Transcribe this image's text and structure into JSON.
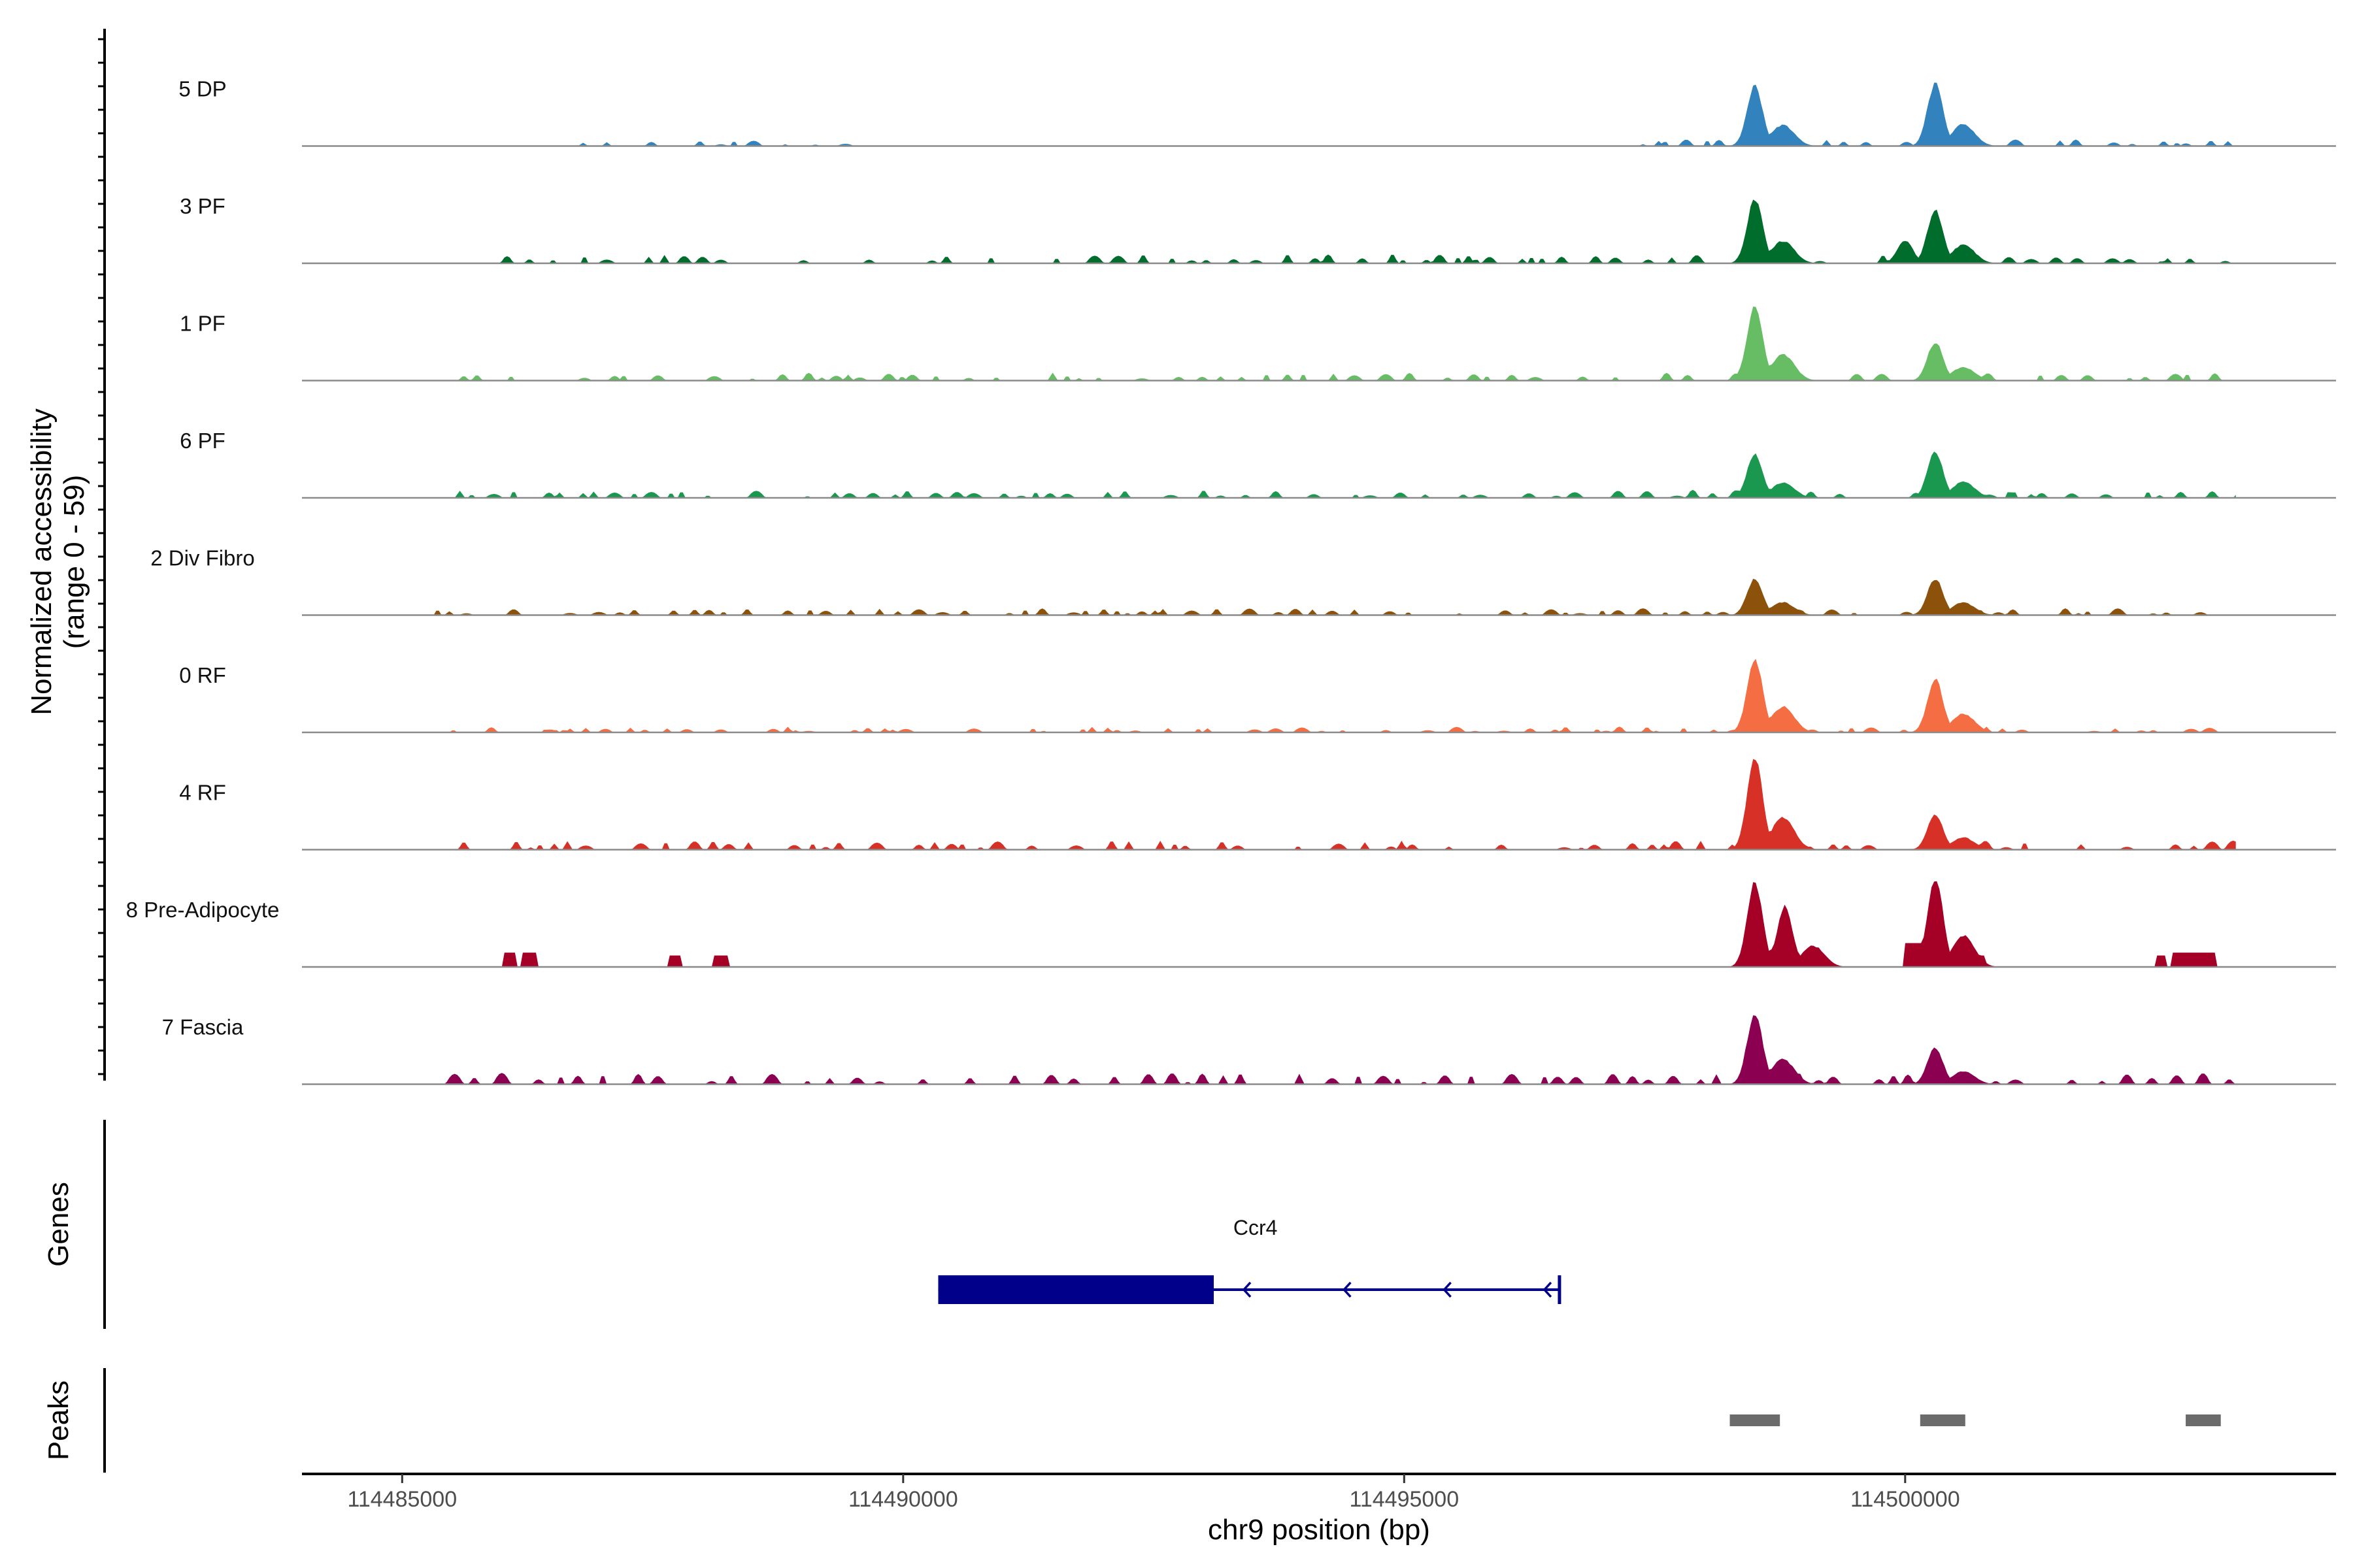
{
  "chart_data": {
    "type": "area",
    "title": "",
    "ylabel": "Normalized accessibility",
    "ylabel_range": "(range 0 - 59)",
    "ylim": [
      0,
      59
    ],
    "xlabel": "chr9 position (bp)",
    "xlim": [
      114484000,
      114504300
    ],
    "xticks": [
      114485000,
      114490000,
      114495000,
      114500000
    ],
    "xtick_labels": [
      "114485000",
      "114490000",
      "114495000",
      "114500000"
    ],
    "region": [
      114485000,
      114503300
    ],
    "tracks": [
      {
        "name": "5 DP",
        "color": "#3182bd",
        "peaks": [
          {
            "pos": 114498500,
            "height": 0.66
          },
          {
            "pos": 114500300,
            "height": 0.68
          }
        ],
        "noise": [
          [
            114486600,
            114489600,
            0.05
          ],
          [
            114497000,
            114503300,
            0.06
          ]
        ]
      },
      {
        "name": "3 PF",
        "color": "#006d2c",
        "peaks": [
          {
            "pos": 114498500,
            "height": 0.7
          },
          {
            "pos": 114500300,
            "height": 0.58
          },
          {
            "pos": 114500000,
            "height": 0.25
          }
        ],
        "noise": [
          [
            114485900,
            114503300,
            0.08
          ]
        ]
      },
      {
        "name": "1 PF",
        "color": "#66bd63",
        "peaks": [
          {
            "pos": 114498500,
            "height": 0.82
          },
          {
            "pos": 114500300,
            "height": 0.42
          }
        ],
        "noise": [
          [
            114485300,
            114503300,
            0.07
          ]
        ]
      },
      {
        "name": "6 PF",
        "color": "#1a9850",
        "peaks": [
          {
            "pos": 114498500,
            "height": 0.48
          },
          {
            "pos": 114500300,
            "height": 0.5
          }
        ],
        "noise": [
          [
            114485300,
            114503300,
            0.07
          ]
        ]
      },
      {
        "name": "2 Div Fibro",
        "color": "#8c510a",
        "peaks": [
          {
            "pos": 114498500,
            "height": 0.4
          },
          {
            "pos": 114500300,
            "height": 0.4
          }
        ],
        "noise": [
          [
            114485300,
            114503300,
            0.06
          ]
        ]
      },
      {
        "name": "0 RF",
        "color": "#f46d43",
        "peaks": [
          {
            "pos": 114498500,
            "height": 0.8
          },
          {
            "pos": 114500300,
            "height": 0.58
          }
        ],
        "noise": [
          [
            114485300,
            114503300,
            0.05
          ]
        ]
      },
      {
        "name": "4 RF",
        "color": "#d73027",
        "peaks": [
          {
            "pos": 114498500,
            "height": 1.0
          },
          {
            "pos": 114500300,
            "height": 0.38
          }
        ],
        "noise": [
          [
            114485300,
            114503300,
            0.08
          ]
        ]
      },
      {
        "name": "8 Pre-Adipocyte",
        "color": "#a50026",
        "peaks": [
          {
            "pos": 114498500,
            "height": 0.92
          },
          {
            "pos": 114498800,
            "height": 0.66
          },
          {
            "pos": 114500300,
            "height": 0.98
          }
        ],
        "blocks": [
          [
            114486000,
            114486150,
            0.15
          ],
          [
            114486200,
            114486350,
            0.15
          ],
          [
            114487650,
            114487800,
            0.12
          ],
          [
            114488100,
            114488250,
            0.12
          ],
          [
            114500000,
            114500200,
            0.25
          ],
          [
            114500700,
            114500800,
            0.12
          ],
          [
            114502500,
            114502600,
            0.12
          ],
          [
            114502650,
            114503100,
            0.15
          ]
        ]
      },
      {
        "name": "7 Fascia",
        "color": "#8c0052",
        "peaks": [
          {
            "pos": 114498500,
            "height": 0.78
          },
          {
            "pos": 114500300,
            "height": 0.4
          }
        ],
        "noise": [
          [
            114485300,
            114503300,
            0.1
          ]
        ]
      }
    ],
    "gene": {
      "label": "Ccr4",
      "exon_start": 114490350,
      "exon_end": 114493100,
      "tx_start": 114490350,
      "tx_end": 114496550,
      "strand": "-",
      "color": "#00008b"
    },
    "peaks_track_label": "Peaks",
    "genes_track_label": "Genes",
    "peak_regions": [
      [
        114498250,
        114498750
      ],
      [
        114500150,
        114500600
      ],
      [
        114502800,
        114503150
      ]
    ],
    "peak_color": "#6b6b6b"
  }
}
